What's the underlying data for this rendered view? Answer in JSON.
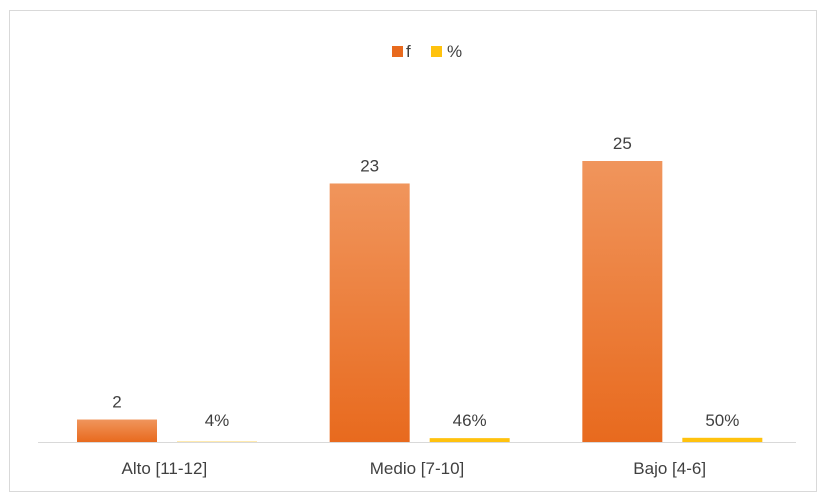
{
  "colors": {
    "f_top": "#f0955c",
    "f_bottom": "#e86a1e",
    "pct": "#ffc20e",
    "axis": "#d9d9d9",
    "text": "#404040"
  },
  "chart_data": {
    "type": "bar",
    "title": "",
    "xlabel": "",
    "ylabel": "",
    "categories": [
      "Alto [11-12]",
      "Medio [7-10]",
      "Bajo [4-6]"
    ],
    "series": [
      {
        "name": "f",
        "values": [
          2,
          23,
          25
        ],
        "labels": [
          "2",
          "23",
          "25"
        ]
      },
      {
        "name": "%",
        "values": [
          4,
          46,
          50
        ],
        "labels": [
          "4%",
          "46%",
          "50%"
        ]
      }
    ],
    "legend_position": "top-center",
    "grid": false
  }
}
